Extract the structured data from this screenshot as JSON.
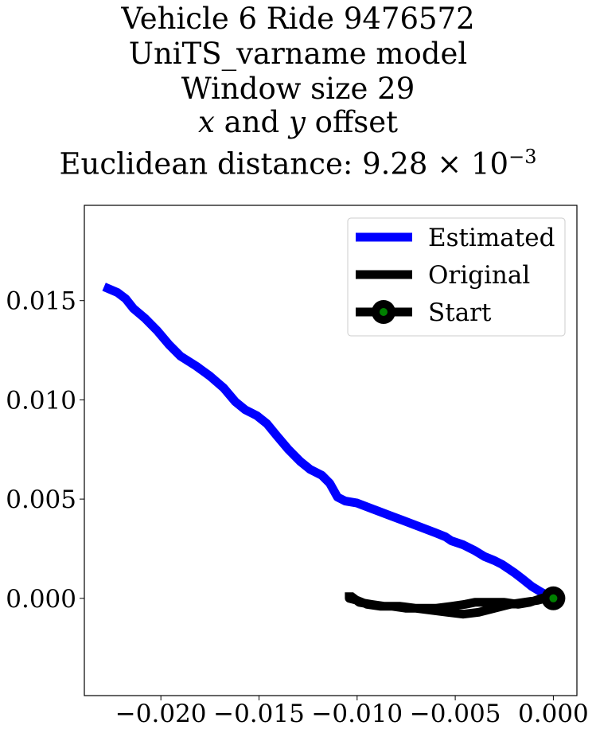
{
  "chart_data": {
    "type": "line",
    "title_lines": [
      "Vehicle 6 Ride 9476572",
      "UniTS_varname model",
      "Window size 29",
      "x and y offset",
      "Euclidean distance: 9.28 × 10−3"
    ],
    "title_parts": {
      "line4_x": "x",
      "line4_and": " and ",
      "line4_y": "y",
      "line4_rest": " offset",
      "line5_prefix": "Euclidean distance: 9.28 × 10",
      "line5_exp": "−3"
    },
    "xlabel": "",
    "ylabel": "",
    "xlim": [
      -0.0239,
      0.0012
    ],
    "ylim": [
      -0.0049,
      0.0198
    ],
    "xticks": [
      -0.02,
      -0.015,
      -0.01,
      -0.005,
      0.0
    ],
    "xtick_labels": [
      "−0.020",
      "−0.015",
      "−0.010",
      "−0.005",
      "0.000"
    ],
    "yticks": [
      0.0,
      0.005,
      0.01,
      0.015
    ],
    "ytick_labels": [
      "0.000",
      "0.005",
      "0.010",
      "0.015"
    ],
    "grid": false,
    "legend_position": "upper right",
    "series": [
      {
        "name": "Estimated",
        "color": "#0000ff",
        "points": [
          [
            -0.0229,
            0.0157
          ],
          [
            -0.0222,
            0.0154
          ],
          [
            -0.0218,
            0.0151
          ],
          [
            -0.0214,
            0.0146
          ],
          [
            -0.0208,
            0.0141
          ],
          [
            -0.0202,
            0.0135
          ],
          [
            -0.0196,
            0.0128
          ],
          [
            -0.019,
            0.0122
          ],
          [
            -0.0182,
            0.0117
          ],
          [
            -0.0175,
            0.0112
          ],
          [
            -0.0168,
            0.0106
          ],
          [
            -0.0162,
            0.0099
          ],
          [
            -0.0157,
            0.0095
          ],
          [
            -0.0151,
            0.0092
          ],
          [
            -0.0146,
            0.0088
          ],
          [
            -0.0141,
            0.0082
          ],
          [
            -0.0135,
            0.0075
          ],
          [
            -0.0129,
            0.0069
          ],
          [
            -0.0124,
            0.0065
          ],
          [
            -0.0118,
            0.0062
          ],
          [
            -0.0114,
            0.0058
          ],
          [
            -0.011,
            0.0051
          ],
          [
            -0.0106,
            0.0049
          ],
          [
            -0.01,
            0.0048
          ],
          [
            -0.0092,
            0.0045
          ],
          [
            -0.0084,
            0.0042
          ],
          [
            -0.0076,
            0.0039
          ],
          [
            -0.0068,
            0.0036
          ],
          [
            -0.006,
            0.0033
          ],
          [
            -0.0055,
            0.0031
          ],
          [
            -0.0052,
            0.0029
          ],
          [
            -0.0046,
            0.0027
          ],
          [
            -0.004,
            0.0024
          ],
          [
            -0.0035,
            0.0021
          ],
          [
            -0.003,
            0.0019
          ],
          [
            -0.0026,
            0.0017
          ],
          [
            -0.002,
            0.0013
          ],
          [
            -0.0016,
            0.001
          ],
          [
            -0.0011,
            0.0006
          ],
          [
            -0.0006,
            0.0003
          ],
          [
            0.0,
            0.0
          ]
        ]
      },
      {
        "name": "Original",
        "color": "#000000",
        "points": [
          [
            -0.0104,
            0.0003
          ],
          [
            -0.0104,
            0.0
          ],
          [
            -0.01,
            -0.0001
          ],
          [
            -0.0095,
            -0.0003
          ],
          [
            -0.0088,
            -0.0004
          ],
          [
            -0.0082,
            -0.0004
          ],
          [
            -0.0075,
            -0.0005
          ],
          [
            -0.0068,
            -0.0005
          ],
          [
            -0.006,
            -0.0005
          ],
          [
            -0.0052,
            -0.0004
          ],
          [
            -0.0045,
            -0.0003
          ],
          [
            -0.004,
            -0.0002
          ],
          [
            -0.0033,
            -0.0002
          ],
          [
            -0.0025,
            -0.0002
          ],
          [
            -0.0018,
            -0.0003
          ],
          [
            -0.0012,
            -0.0002
          ],
          [
            -0.0006,
            0.0
          ],
          [
            -0.0002,
            0.0001
          ],
          [
            0.0,
            0.0
          ],
          [
            -0.0004,
            0.0
          ],
          [
            -0.0008,
            -0.0001
          ],
          [
            -0.0015,
            -0.0002
          ],
          [
            -0.0022,
            -0.0003
          ],
          [
            -0.003,
            -0.0005
          ],
          [
            -0.0038,
            -0.0007
          ],
          [
            -0.0046,
            -0.0008
          ],
          [
            -0.0054,
            -0.0007
          ],
          [
            -0.0062,
            -0.0006
          ],
          [
            -0.007,
            -0.0005
          ],
          [
            -0.0078,
            -0.0004
          ],
          [
            -0.0086,
            -0.0004
          ],
          [
            -0.0093,
            -0.0003
          ],
          [
            -0.0099,
            -0.0002
          ],
          [
            -0.0103,
            0.0001
          ]
        ]
      }
    ],
    "start_marker": {
      "name": "Start",
      "point": [
        0.0,
        0.0
      ],
      "outer_color": "#000000",
      "inner_color": "#008000"
    }
  }
}
